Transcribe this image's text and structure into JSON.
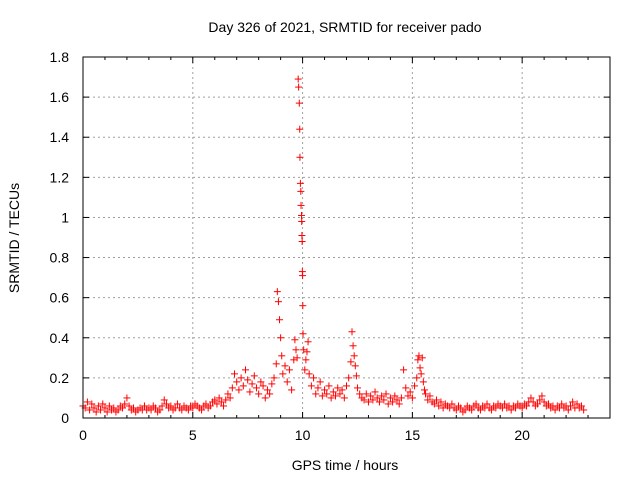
{
  "chart_data": {
    "type": "scatter",
    "title": "Day 326 of 2021, SRMTID for receiver pado",
    "xlabel": "GPS time / hours",
    "ylabel": "SRMTID / TECUs",
    "xlim": [
      0,
      24
    ],
    "ylim": [
      0,
      1.8
    ],
    "xticks": [
      0,
      5,
      10,
      15,
      20
    ],
    "xtick_labels": [
      "0",
      "5",
      "10",
      "15",
      "20"
    ],
    "yticks": [
      0,
      0.2,
      0.4,
      0.6,
      0.8,
      1.0,
      1.2,
      1.4,
      1.6,
      1.8
    ],
    "ytick_labels": [
      "0",
      "0.2",
      "0.4",
      "0.6",
      "0.8",
      "1",
      "1.2",
      "1.4",
      "1.6",
      "1.8"
    ],
    "grid": true,
    "marker": "+",
    "color": "#ff0000",
    "series": [
      {
        "name": "SRMTID",
        "points": [
          [
            0.0,
            0.06
          ],
          [
            0.1,
            0.05
          ],
          [
            0.2,
            0.08
          ],
          [
            0.3,
            0.04
          ],
          [
            0.4,
            0.07
          ],
          [
            0.5,
            0.05
          ],
          [
            0.6,
            0.03
          ],
          [
            0.7,
            0.06
          ],
          [
            0.8,
            0.04
          ],
          [
            0.9,
            0.07
          ],
          [
            1.0,
            0.05
          ],
          [
            1.1,
            0.03
          ],
          [
            1.2,
            0.06
          ],
          [
            1.3,
            0.04
          ],
          [
            1.4,
            0.05
          ],
          [
            1.5,
            0.03
          ],
          [
            1.6,
            0.04
          ],
          [
            1.7,
            0.06
          ],
          [
            1.8,
            0.05
          ],
          [
            1.9,
            0.07
          ],
          [
            2.0,
            0.1
          ],
          [
            2.1,
            0.06
          ],
          [
            2.2,
            0.04
          ],
          [
            2.3,
            0.05
          ],
          [
            2.4,
            0.03
          ],
          [
            2.5,
            0.04
          ],
          [
            2.6,
            0.05
          ],
          [
            2.7,
            0.04
          ],
          [
            2.8,
            0.06
          ],
          [
            2.9,
            0.04
          ],
          [
            3.0,
            0.05
          ],
          [
            3.1,
            0.04
          ],
          [
            3.2,
            0.06
          ],
          [
            3.3,
            0.05
          ],
          [
            3.4,
            0.03
          ],
          [
            3.5,
            0.04
          ],
          [
            3.6,
            0.06
          ],
          [
            3.7,
            0.09
          ],
          [
            3.8,
            0.07
          ],
          [
            3.9,
            0.05
          ],
          [
            4.0,
            0.06
          ],
          [
            4.1,
            0.04
          ],
          [
            4.2,
            0.05
          ],
          [
            4.3,
            0.07
          ],
          [
            4.4,
            0.05
          ],
          [
            4.5,
            0.04
          ],
          [
            4.6,
            0.06
          ],
          [
            4.7,
            0.05
          ],
          [
            4.8,
            0.04
          ],
          [
            4.9,
            0.06
          ],
          [
            5.0,
            0.05
          ],
          [
            5.1,
            0.07
          ],
          [
            5.2,
            0.06
          ],
          [
            5.3,
            0.05
          ],
          [
            5.4,
            0.04
          ],
          [
            5.5,
            0.06
          ],
          [
            5.6,
            0.07
          ],
          [
            5.7,
            0.05
          ],
          [
            5.8,
            0.06
          ],
          [
            5.9,
            0.08
          ],
          [
            6.0,
            0.09
          ],
          [
            6.1,
            0.07
          ],
          [
            6.2,
            0.1
          ],
          [
            6.3,
            0.08
          ],
          [
            6.4,
            0.06
          ],
          [
            6.5,
            0.09
          ],
          [
            6.6,
            0.12
          ],
          [
            6.7,
            0.1
          ],
          [
            6.8,
            0.15
          ],
          [
            6.9,
            0.22
          ],
          [
            7.0,
            0.18
          ],
          [
            7.1,
            0.14
          ],
          [
            7.2,
            0.2
          ],
          [
            7.3,
            0.16
          ],
          [
            7.4,
            0.24
          ],
          [
            7.5,
            0.19
          ],
          [
            7.6,
            0.13
          ],
          [
            7.7,
            0.17
          ],
          [
            7.8,
            0.21
          ],
          [
            7.9,
            0.15
          ],
          [
            8.0,
            0.12
          ],
          [
            8.1,
            0.18
          ],
          [
            8.2,
            0.16
          ],
          [
            8.3,
            0.1
          ],
          [
            8.4,
            0.14
          ],
          [
            8.5,
            0.12
          ],
          [
            8.6,
            0.17
          ],
          [
            8.7,
            0.2
          ],
          [
            8.8,
            0.27
          ],
          [
            8.85,
            0.63
          ],
          [
            8.9,
            0.58
          ],
          [
            8.95,
            0.49
          ],
          [
            9.0,
            0.4
          ],
          [
            9.05,
            0.31
          ],
          [
            9.1,
            0.22
          ],
          [
            9.2,
            0.26
          ],
          [
            9.3,
            0.18
          ],
          [
            9.4,
            0.24
          ],
          [
            9.5,
            0.14
          ],
          [
            9.6,
            0.29
          ],
          [
            9.65,
            0.39
          ],
          [
            9.7,
            0.34
          ],
          [
            9.75,
            0.3
          ],
          [
            9.8,
            1.69
          ],
          [
            9.82,
            1.65
          ],
          [
            9.85,
            1.57
          ],
          [
            9.87,
            1.44
          ],
          [
            9.88,
            1.3
          ],
          [
            9.9,
            1.17
          ],
          [
            9.92,
            1.13
          ],
          [
            9.93,
            1.06
          ],
          [
            9.95,
            1.01
          ],
          [
            9.96,
            0.98
          ],
          [
            9.97,
            0.91
          ],
          [
            9.98,
            0.88
          ],
          [
            9.99,
            0.73
          ],
          [
            10.0,
            0.71
          ],
          [
            10.01,
            0.56
          ],
          [
            10.02,
            0.42
          ],
          [
            10.05,
            0.34
          ],
          [
            10.1,
            0.24
          ],
          [
            10.15,
            0.29
          ],
          [
            10.2,
            0.33
          ],
          [
            10.25,
            0.38
          ],
          [
            10.3,
            0.22
          ],
          [
            10.4,
            0.16
          ],
          [
            10.5,
            0.2
          ],
          [
            10.6,
            0.12
          ],
          [
            10.7,
            0.15
          ],
          [
            10.8,
            0.18
          ],
          [
            10.9,
            0.11
          ],
          [
            11.0,
            0.14
          ],
          [
            11.1,
            0.12
          ],
          [
            11.2,
            0.16
          ],
          [
            11.3,
            0.1
          ],
          [
            11.4,
            0.13
          ],
          [
            11.5,
            0.11
          ],
          [
            11.6,
            0.15
          ],
          [
            11.7,
            0.12
          ],
          [
            11.8,
            0.14
          ],
          [
            11.9,
            0.1
          ],
          [
            12.0,
            0.16
          ],
          [
            12.1,
            0.2
          ],
          [
            12.2,
            0.28
          ],
          [
            12.25,
            0.43
          ],
          [
            12.3,
            0.36
          ],
          [
            12.35,
            0.31
          ],
          [
            12.4,
            0.26
          ],
          [
            12.45,
            0.21
          ],
          [
            12.5,
            0.15
          ],
          [
            12.6,
            0.12
          ],
          [
            12.7,
            0.1
          ],
          [
            12.8,
            0.09
          ],
          [
            12.9,
            0.12
          ],
          [
            13.0,
            0.08
          ],
          [
            13.1,
            0.11
          ],
          [
            13.2,
            0.09
          ],
          [
            13.3,
            0.13
          ],
          [
            13.4,
            0.1
          ],
          [
            13.5,
            0.08
          ],
          [
            13.6,
            0.11
          ],
          [
            13.7,
            0.09
          ],
          [
            13.8,
            0.12
          ],
          [
            13.9,
            0.07
          ],
          [
            14.0,
            0.1
          ],
          [
            14.1,
            0.08
          ],
          [
            14.2,
            0.11
          ],
          [
            14.3,
            0.09
          ],
          [
            14.4,
            0.07
          ],
          [
            14.5,
            0.1
          ],
          [
            14.6,
            0.24
          ],
          [
            14.7,
            0.15
          ],
          [
            14.8,
            0.11
          ],
          [
            14.9,
            0.13
          ],
          [
            15.0,
            0.1
          ],
          [
            15.1,
            0.16
          ],
          [
            15.2,
            0.2
          ],
          [
            15.25,
            0.29
          ],
          [
            15.3,
            0.31
          ],
          [
            15.35,
            0.25
          ],
          [
            15.4,
            0.22
          ],
          [
            15.45,
            0.3
          ],
          [
            15.5,
            0.18
          ],
          [
            15.55,
            0.14
          ],
          [
            15.6,
            0.12
          ],
          [
            15.7,
            0.09
          ],
          [
            15.8,
            0.11
          ],
          [
            15.9,
            0.08
          ],
          [
            16.0,
            0.07
          ],
          [
            16.1,
            0.09
          ],
          [
            16.2,
            0.06
          ],
          [
            16.3,
            0.08
          ],
          [
            16.4,
            0.05
          ],
          [
            16.5,
            0.07
          ],
          [
            16.6,
            0.06
          ],
          [
            16.7,
            0.05
          ],
          [
            16.8,
            0.07
          ],
          [
            16.9,
            0.05
          ],
          [
            17.0,
            0.04
          ],
          [
            17.1,
            0.06
          ],
          [
            17.2,
            0.05
          ],
          [
            17.3,
            0.03
          ],
          [
            17.4,
            0.04
          ],
          [
            17.5,
            0.06
          ],
          [
            17.6,
            0.05
          ],
          [
            17.7,
            0.04
          ],
          [
            17.8,
            0.06
          ],
          [
            17.9,
            0.07
          ],
          [
            18.0,
            0.05
          ],
          [
            18.1,
            0.04
          ],
          [
            18.2,
            0.06
          ],
          [
            18.3,
            0.05
          ],
          [
            18.4,
            0.07
          ],
          [
            18.5,
            0.05
          ],
          [
            18.6,
            0.04
          ],
          [
            18.7,
            0.06
          ],
          [
            18.8,
            0.05
          ],
          [
            18.9,
            0.07
          ],
          [
            19.0,
            0.06
          ],
          [
            19.1,
            0.05
          ],
          [
            19.2,
            0.07
          ],
          [
            19.3,
            0.05
          ],
          [
            19.4,
            0.06
          ],
          [
            19.5,
            0.04
          ],
          [
            19.6,
            0.06
          ],
          [
            19.7,
            0.05
          ],
          [
            19.8,
            0.07
          ],
          [
            19.9,
            0.06
          ],
          [
            20.0,
            0.05
          ],
          [
            20.1,
            0.07
          ],
          [
            20.2,
            0.06
          ],
          [
            20.3,
            0.08
          ],
          [
            20.4,
            0.1
          ],
          [
            20.5,
            0.08
          ],
          [
            20.6,
            0.06
          ],
          [
            20.7,
            0.07
          ],
          [
            20.8,
            0.09
          ],
          [
            20.9,
            0.11
          ],
          [
            21.0,
            0.08
          ],
          [
            21.1,
            0.06
          ],
          [
            21.2,
            0.07
          ],
          [
            21.3,
            0.05
          ],
          [
            21.4,
            0.06
          ],
          [
            21.5,
            0.04
          ],
          [
            21.6,
            0.06
          ],
          [
            21.7,
            0.05
          ],
          [
            21.8,
            0.07
          ],
          [
            21.9,
            0.05
          ],
          [
            22.0,
            0.06
          ],
          [
            22.1,
            0.04
          ],
          [
            22.2,
            0.06
          ],
          [
            22.3,
            0.08
          ],
          [
            22.4,
            0.05
          ],
          [
            22.5,
            0.07
          ],
          [
            22.6,
            0.05
          ],
          [
            22.7,
            0.06
          ],
          [
            22.8,
            0.04
          ]
        ]
      }
    ]
  }
}
